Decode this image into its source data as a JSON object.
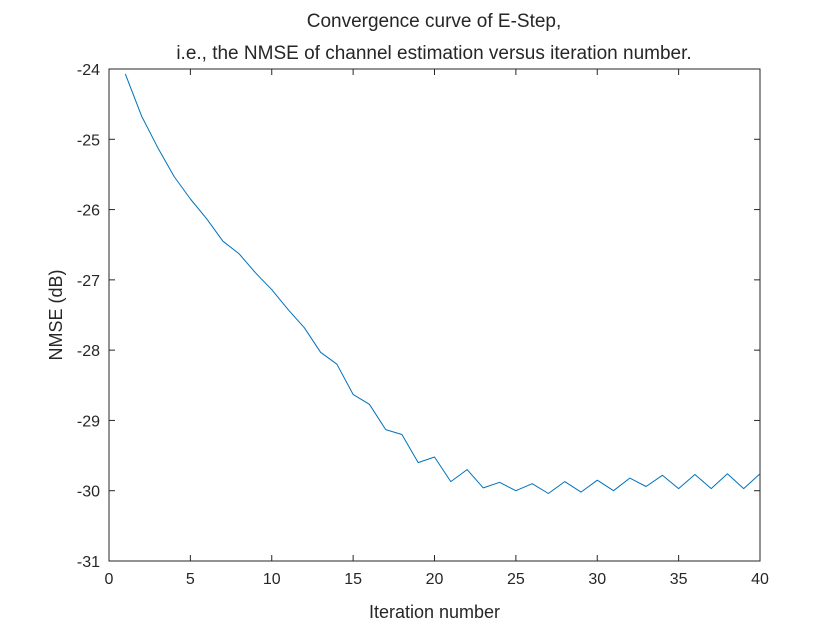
{
  "chart_data": {
    "type": "line",
    "title": [
      "Convergence curve of E-Step,",
      "i.e., the NMSE of channel estimation versus iteration number."
    ],
    "xlabel": "Iteration number",
    "ylabel": "NMSE (dB)",
    "xlim": [
      0,
      40
    ],
    "ylim": [
      -31,
      -24
    ],
    "xticks": [
      0,
      5,
      10,
      15,
      20,
      25,
      30,
      35,
      40
    ],
    "yticks": [
      -31,
      -30,
      -29,
      -28,
      -27,
      -26,
      -25,
      -24
    ],
    "grid": false,
    "series_color": "#0072BD",
    "series": [
      {
        "x": [
          1,
          2,
          3,
          4,
          5,
          6,
          7,
          8,
          9,
          10,
          11,
          12,
          13,
          14,
          15,
          16,
          17,
          18,
          19,
          20,
          21,
          22,
          23,
          24,
          25,
          26,
          27,
          28,
          29,
          30,
          31,
          32,
          33,
          34,
          35,
          36,
          37,
          38,
          39,
          40
        ],
        "values": [
          -24.07,
          -24.67,
          -25.12,
          -25.53,
          -25.85,
          -26.13,
          -26.45,
          -26.63,
          -26.9,
          -27.14,
          -27.42,
          -27.68,
          -28.03,
          -28.2,
          -28.63,
          -28.77,
          -29.13,
          -29.2,
          -29.6,
          -29.52,
          -29.87,
          -29.7,
          -29.96,
          -29.88,
          -30.0,
          -29.9,
          -30.04,
          -29.87,
          -30.02,
          -29.85,
          -30.0,
          -29.82,
          -29.94,
          -29.78,
          -29.97,
          -29.77,
          -29.97,
          -29.76,
          -29.97,
          -29.76
        ]
      }
    ]
  }
}
